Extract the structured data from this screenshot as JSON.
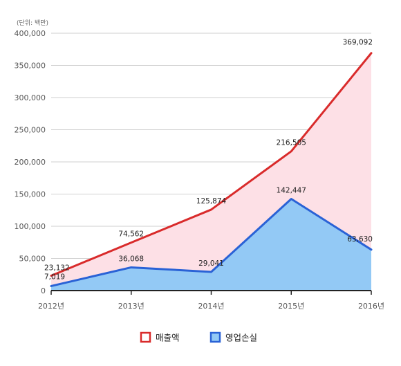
{
  "chart_data": {
    "type": "area",
    "unit_label": "(단위: 백만)",
    "categories": [
      "2012년",
      "2013년",
      "2014년",
      "2015년",
      "2016년"
    ],
    "ylim": [
      0,
      400000
    ],
    "yticks": [
      0,
      50000,
      100000,
      150000,
      200000,
      250000,
      300000,
      350000,
      400000
    ],
    "ytick_labels": [
      "0",
      "50,000",
      "100,000",
      "150,000",
      "200,000",
      "250,000",
      "300,000",
      "350,000",
      "400,000"
    ],
    "grid": true,
    "legend_position": "bottom-center",
    "series": [
      {
        "name": "매출액",
        "values": [
          23132,
          74562,
          125874,
          216505,
          369092
        ],
        "value_labels": [
          "23,132",
          "74,562",
          "125,874",
          "216,505",
          "369,092"
        ],
        "line_color": "#d92b2b",
        "fill_color": "#fde0e6"
      },
      {
        "name": "영업손실",
        "values": [
          7019,
          36068,
          29041,
          142447,
          63630
        ],
        "value_labels": [
          "7,019",
          "36,068",
          "29,041",
          "142,447",
          "63,630"
        ],
        "line_color": "#2a62d6",
        "fill_color": "#93c9f5"
      }
    ]
  }
}
